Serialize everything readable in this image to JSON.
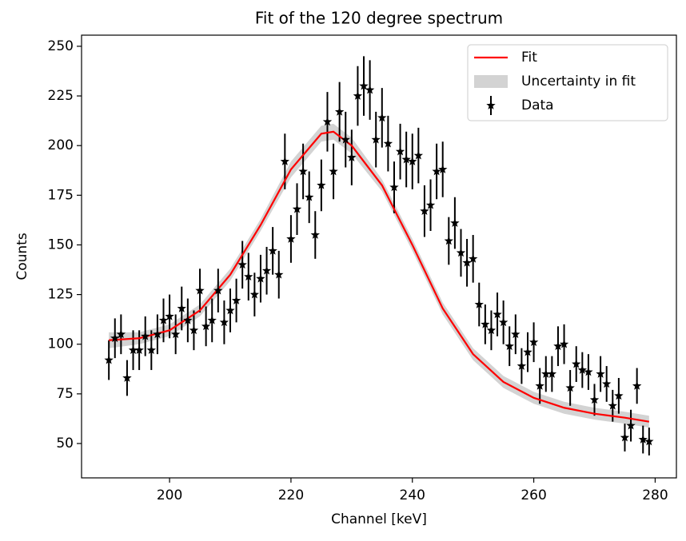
{
  "chart_data": {
    "type": "errorbar",
    "title": "Fit of the 120 degree spectrum",
    "xlabel": "Channel [keV]",
    "ylabel": "Counts",
    "xlim": [
      185.5,
      283.5
    ],
    "ylim": [
      32.7,
      255.6
    ],
    "xticks": [
      200,
      220,
      240,
      260,
      280
    ],
    "yticks": [
      50,
      75,
      100,
      125,
      150,
      175,
      200,
      225,
      250
    ],
    "legend": "upper right",
    "fit": {
      "name": "Fit",
      "color": "#ff0000",
      "x": [
        190,
        195,
        200,
        205,
        210,
        215,
        220,
        225,
        227,
        230,
        235,
        240,
        245,
        250,
        255,
        260,
        265,
        270,
        275,
        279
      ],
      "values": [
        102,
        103,
        107,
        117,
        135,
        160,
        188,
        206,
        207,
        200,
        180,
        150,
        118,
        95,
        81,
        73,
        68,
        65,
        63,
        61
      ]
    },
    "band": {
      "name": "Uncertainty in fit",
      "color": "#d3d3d3",
      "lower": [
        98,
        100,
        104,
        114,
        132,
        157,
        184,
        202,
        203,
        196,
        177,
        147,
        115,
        92,
        78,
        70,
        65,
        62,
        60,
        58
      ],
      "upper": [
        106,
        106,
        110,
        120,
        138,
        163,
        192,
        210,
        211,
        204,
        183,
        153,
        121,
        98,
        84,
        76,
        71,
        68,
        66,
        64
      ]
    },
    "data": {
      "name": "Data",
      "color": "#000000",
      "x": [
        190,
        191,
        192,
        193,
        194,
        195,
        196,
        197,
        198,
        199,
        200,
        201,
        202,
        203,
        204,
        205,
        206,
        207,
        208,
        209,
        210,
        211,
        212,
        213,
        214,
        215,
        216,
        217,
        218,
        219,
        220,
        221,
        222,
        223,
        224,
        225,
        226,
        227,
        228,
        229,
        230,
        231,
        232,
        233,
        234,
        235,
        236,
        237,
        238,
        239,
        240,
        241,
        242,
        243,
        244,
        245,
        246,
        247,
        248,
        249,
        250,
        251,
        252,
        253,
        254,
        255,
        256,
        257,
        258,
        259,
        260,
        261,
        262,
        263,
        264,
        265,
        266,
        267,
        268,
        269,
        270,
        271,
        272,
        273,
        274,
        275,
        276,
        277,
        278,
        279
      ],
      "values": [
        92,
        103,
        105,
        83,
        97,
        97,
        104,
        97,
        105,
        112,
        114,
        105,
        118,
        112,
        107,
        127,
        109,
        112,
        127,
        111,
        117,
        122,
        140,
        134,
        125,
        133,
        137,
        147,
        135,
        192,
        153,
        168,
        187,
        174,
        155,
        180,
        212,
        187,
        217,
        203,
        194,
        225,
        230,
        228,
        203,
        214,
        201,
        179,
        197,
        193,
        192,
        195,
        167,
        170,
        187,
        188,
        152,
        161,
        146,
        141,
        143,
        120,
        110,
        107,
        115,
        111,
        99,
        105,
        89,
        96,
        101,
        79,
        85,
        85,
        99,
        100,
        78,
        90,
        87,
        86,
        72,
        85,
        80,
        69,
        74,
        53,
        59,
        79,
        52,
        51
      ],
      "errors": [
        10,
        10,
        10,
        9,
        10,
        10,
        10,
        10,
        10,
        11,
        11,
        10,
        11,
        11,
        10,
        11,
        10,
        11,
        11,
        11,
        11,
        11,
        12,
        12,
        11,
        12,
        12,
        12,
        12,
        14,
        12,
        13,
        14,
        13,
        12,
        13,
        15,
        14,
        15,
        14,
        14,
        15,
        15,
        15,
        14,
        15,
        14,
        13,
        14,
        14,
        14,
        14,
        13,
        13,
        14,
        14,
        12,
        13,
        12,
        12,
        12,
        11,
        10,
        10,
        11,
        11,
        10,
        10,
        9,
        10,
        10,
        9,
        9,
        9,
        10,
        10,
        9,
        9,
        9,
        9,
        8,
        9,
        9,
        8,
        9,
        7,
        8,
        9,
        7,
        7
      ]
    }
  }
}
